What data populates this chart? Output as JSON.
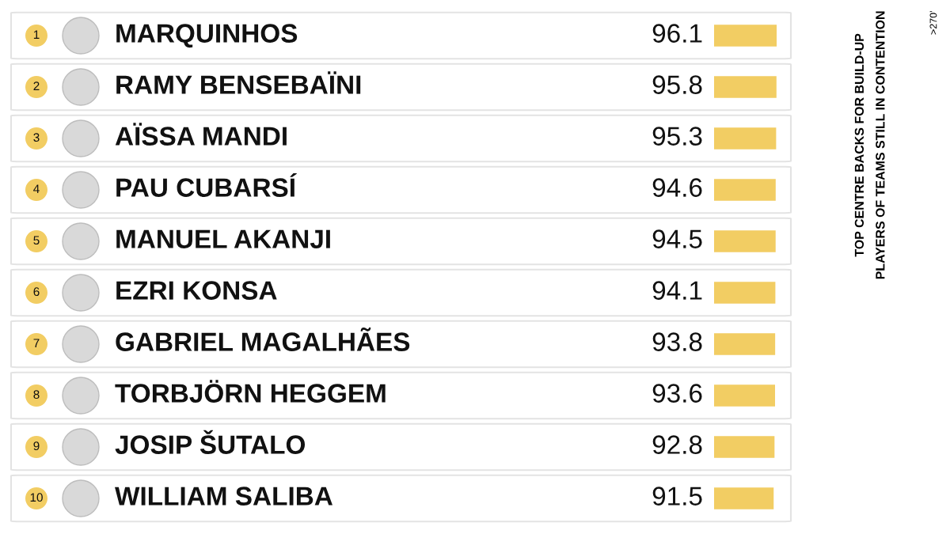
{
  "chart_data": {
    "type": "bar",
    "orientation": "horizontal",
    "title": "TOP CENTRE BACKS FOR BUILD-UP\nPLAYERS OF TEAMS STILL IN CONTENTION",
    "subtitle": ">270'",
    "categories": [
      "MARQUINHOS",
      "RAMY BENSEBAÏNI",
      "AÏSSA MANDI",
      "PAU CUBARSÍ",
      "MANUEL AKANJI",
      "EZRI KONSA",
      "GABRIEL MAGALHÃES",
      "TORBJÖRN HEGGEM",
      "JOSIP ŠUTALO",
      "WILLIAM SALIBA"
    ],
    "values": [
      96.1,
      95.8,
      95.3,
      94.6,
      94.5,
      94.1,
      93.8,
      93.6,
      92.8,
      91.5
    ],
    "color": "#f2cd63",
    "data_labels": true,
    "annotations": [
      "1",
      "2",
      "3",
      "4",
      "5",
      "6",
      "7",
      "8",
      "9",
      "10"
    ]
  }
}
